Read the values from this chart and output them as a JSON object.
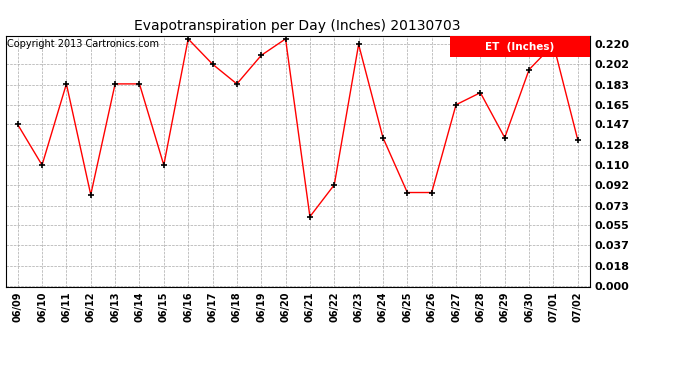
{
  "title": "Evapotranspiration per Day (Inches) 20130703",
  "copyright": "Copyright 2013 Cartronics.com",
  "legend_label": "ET  (Inches)",
  "dates": [
    "06/09",
    "06/10",
    "06/11",
    "06/12",
    "06/13",
    "06/14",
    "06/15",
    "06/16",
    "06/17",
    "06/18",
    "06/19",
    "06/20",
    "06/21",
    "06/22",
    "06/23",
    "06/24",
    "06/25",
    "06/26",
    "06/27",
    "06/28",
    "06/29",
    "06/30",
    "07/01",
    "07/02"
  ],
  "values": [
    0.147,
    0.11,
    0.184,
    0.083,
    0.184,
    0.184,
    0.11,
    0.225,
    0.202,
    0.184,
    0.21,
    0.225,
    0.063,
    0.092,
    0.22,
    0.135,
    0.085,
    0.085,
    0.165,
    0.176,
    0.135,
    0.197,
    0.22,
    0.133
  ],
  "line_color": "#FF0000",
  "marker_color": "#000000",
  "bg_color": "#FFFFFF",
  "grid_color": "#AAAAAA",
  "yticks": [
    0.0,
    0.018,
    0.037,
    0.055,
    0.073,
    0.092,
    0.11,
    0.128,
    0.147,
    0.165,
    0.183,
    0.202,
    0.22
  ],
  "ylim_min": -0.001,
  "ylim_max": 0.228,
  "legend_bg": "#FF0000",
  "legend_fg": "#FFFFFF",
  "title_fontsize": 10,
  "copyright_fontsize": 7,
  "ytick_fontsize": 8,
  "xtick_fontsize": 7,
  "legend_fontsize": 7.5
}
